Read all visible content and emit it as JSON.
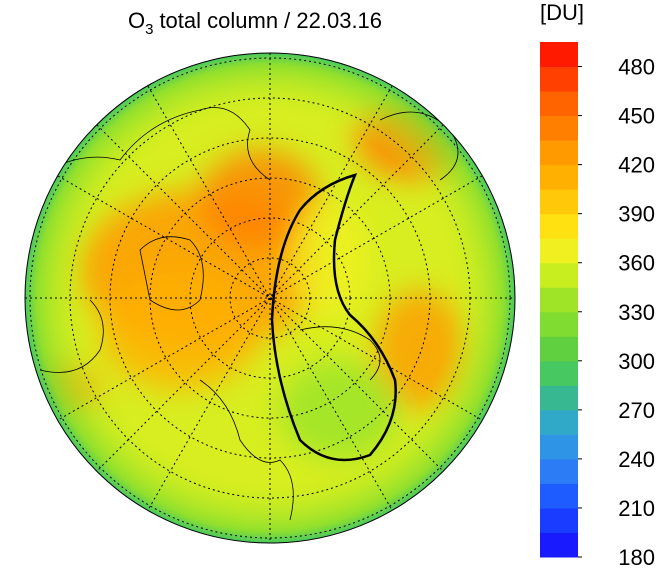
{
  "title": {
    "symbol": "O",
    "subscript": "3",
    "text": "total column / 22.03.16"
  },
  "colorbar": {
    "unit": "[DU]",
    "lim": [
      180,
      495
    ],
    "ticks": [
      180,
      210,
      240,
      270,
      300,
      330,
      360,
      390,
      420,
      450,
      480
    ],
    "colors": [
      "#1a1aff",
      "#1a3cff",
      "#1e5cff",
      "#2c7cf5",
      "#2e94e6",
      "#30a8c8",
      "#38b890",
      "#48c860",
      "#60d040",
      "#80dc30",
      "#a0e428",
      "#c8ee20",
      "#f0f020",
      "#ffe010",
      "#ffc808",
      "#ffb000",
      "#ff9a00",
      "#ff8000",
      "#ff6400",
      "#ff4000",
      "#ff1a00"
    ]
  }
}
